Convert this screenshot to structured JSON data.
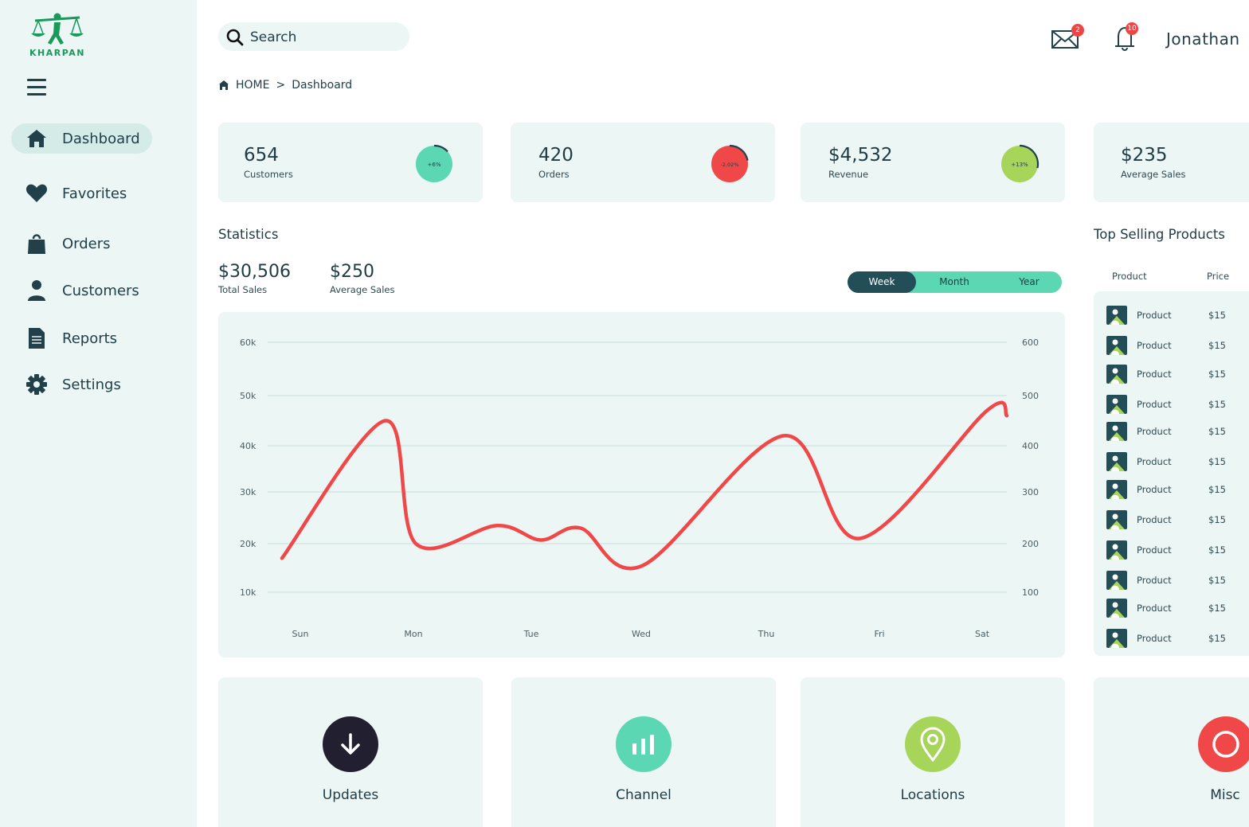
{
  "brand": {
    "name": "KHARPAN"
  },
  "sidebar": {
    "items": [
      {
        "label": "Dashboard",
        "icon": "home-icon",
        "active": true
      },
      {
        "label": "Favorites",
        "icon": "heart-icon",
        "active": false
      },
      {
        "label": "Orders",
        "icon": "shopping-bag-icon",
        "active": false
      },
      {
        "label": "Customers",
        "icon": "user-icon",
        "active": false
      },
      {
        "label": "Reports",
        "icon": "document-icon",
        "active": false
      },
      {
        "label": "Settings",
        "icon": "gear-icon",
        "active": false
      }
    ]
  },
  "header": {
    "search_placeholder": "Search",
    "mail_badge": "2",
    "notification_badge": "10",
    "username": "Jonathan"
  },
  "breadcrumb": {
    "home": "HOME",
    "separator": ">",
    "current": "Dashboard"
  },
  "kpis": [
    {
      "value": "654",
      "label": "Customers",
      "change": "+6%",
      "color": "#5bd8b3",
      "progress": 0.06
    },
    {
      "value": "420",
      "label": "Orders",
      "change": "-2.02%",
      "color": "#f04848",
      "progress": 0.1
    },
    {
      "value": "$4,532",
      "label": "Revenue",
      "change": "+13%",
      "color": "#a6d55a",
      "progress": 0.13
    },
    {
      "value": "$235",
      "label": "Average Sales"
    }
  ],
  "statistics": {
    "title": "Statistics",
    "total_sales": "$30,506",
    "total_sales_label": "Total Sales",
    "average_sales": "$250",
    "average_sales_label": "Average Sales",
    "periods": [
      "Week",
      "Month",
      "Year"
    ],
    "active_period": "Week"
  },
  "chart_data": {
    "type": "line",
    "x": [
      "Sun",
      "Mon",
      "Tue",
      "Wed",
      "Thu",
      "Fri",
      "Sat"
    ],
    "series": [
      {
        "values": [
          17000,
          20000,
          23500,
          15500,
          42000,
          21000,
          47000
        ]
      }
    ],
    "left_axis_ticks": [
      "60k",
      "50k",
      "40k",
      "30k",
      "20k",
      "10k"
    ],
    "right_axis_ticks": [
      "600",
      "500",
      "400",
      "300",
      "200",
      "100"
    ],
    "ylim": [
      10000,
      60000
    ],
    "color": "#f04848",
    "grid": true
  },
  "top_selling": {
    "title": "Top Selling Products",
    "columns": [
      "Product",
      "Price"
    ],
    "rows": [
      {
        "name": "Product",
        "price": "$15"
      },
      {
        "name": "Product",
        "price": "$15"
      },
      {
        "name": "Product",
        "price": "$15"
      },
      {
        "name": "Product",
        "price": "$15"
      },
      {
        "name": "Product",
        "price": "$15"
      },
      {
        "name": "Product",
        "price": "$15"
      },
      {
        "name": "Product",
        "price": "$15"
      },
      {
        "name": "Product",
        "price": "$15"
      },
      {
        "name": "Product",
        "price": "$15"
      },
      {
        "name": "Product",
        "price": "$15"
      },
      {
        "name": "Product",
        "price": "$15"
      },
      {
        "name": "Product",
        "price": "$15"
      }
    ]
  },
  "bottom_cards": [
    {
      "label": "Updates",
      "icon": "download-arrow-icon",
      "color": "#222030"
    },
    {
      "label": "Channel",
      "icon": "bar-chart-icon",
      "color": "#5bd8b3"
    },
    {
      "label": "Locations",
      "icon": "location-pin-icon",
      "color": "#a6d55a"
    },
    {
      "label": "Misc",
      "icon": "circle-icon",
      "color": "#f04848"
    }
  ]
}
